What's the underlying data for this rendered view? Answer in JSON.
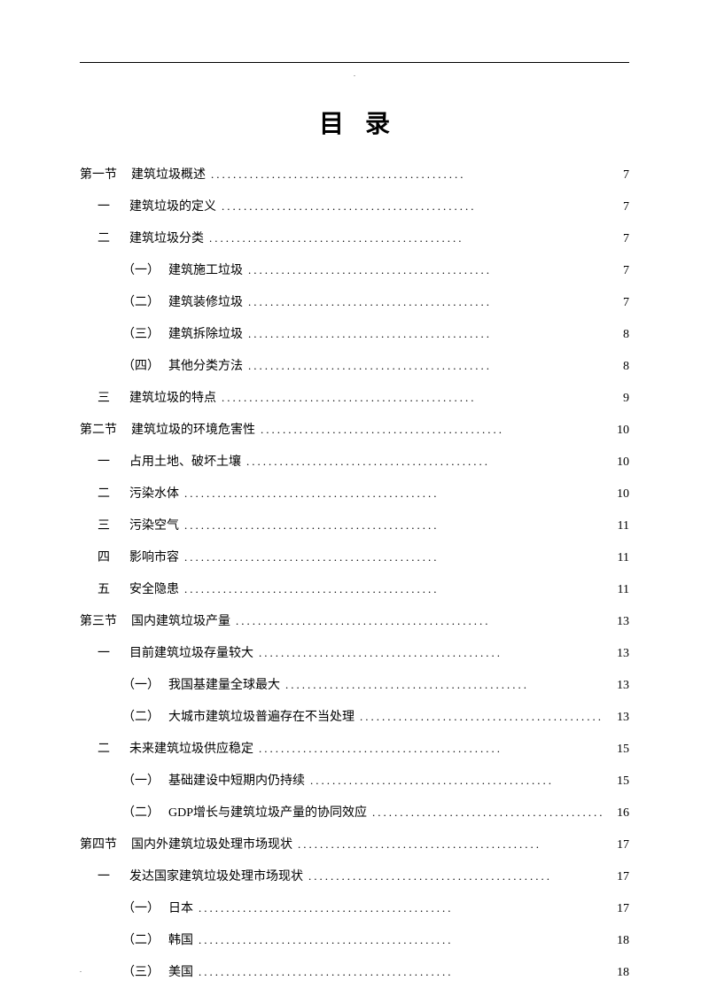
{
  "page_mark_top": ".",
  "page_mark_bottom": ".",
  "title": "目录",
  "dots_short": "............................................",
  "dots_med": "..............................................",
  "dots_long": "................................................",
  "entries": [
    {
      "indent": 0,
      "num": "第一节",
      "label": "建筑垃圾概述",
      "page": "7",
      "gap": false
    },
    {
      "indent": 1,
      "num": "一",
      "label": "建筑垃圾的定义",
      "page": "7",
      "gap": false
    },
    {
      "indent": 1,
      "num": "二",
      "label": "建筑垃圾分类",
      "page": "7",
      "gap": false
    },
    {
      "indent": 2,
      "num": "（一）",
      "label": "建筑施工垃圾",
      "page": "7",
      "gap": false
    },
    {
      "indent": 2,
      "num": "（二）",
      "label": "建筑装修垃圾",
      "page": "7",
      "gap": false
    },
    {
      "indent": 2,
      "num": "（三）",
      "label": "建筑拆除垃圾",
      "page": "8",
      "gap": false
    },
    {
      "indent": 2,
      "num": "（四）",
      "label": "其他分类方法",
      "page": "8",
      "gap": false
    },
    {
      "indent": 1,
      "num": "三",
      "label": "建筑垃圾的特点",
      "page": "9",
      "gap": false
    },
    {
      "indent": 0,
      "num": "第二节",
      "label": "建筑垃圾的环境危害性",
      "page": "10",
      "gap": true
    },
    {
      "indent": 1,
      "num": "一",
      "label": "占用土地、破坏土壤",
      "page": "10",
      "gap": false
    },
    {
      "indent": 1,
      "num": "二",
      "label": "污染水体",
      "page": "10",
      "gap": false
    },
    {
      "indent": 1,
      "num": "三",
      "label": "污染空气",
      "page": "11",
      "gap": false
    },
    {
      "indent": 1,
      "num": "四",
      "label": "影响市容",
      "page": "11",
      "gap": false
    },
    {
      "indent": 1,
      "num": "五",
      "label": "安全隐患",
      "page": "11",
      "gap": false
    },
    {
      "indent": 0,
      "num": "第三节",
      "label": "国内建筑垃圾产量",
      "page": "13",
      "gap": true
    },
    {
      "indent": 1,
      "num": "一",
      "label": "目前建筑垃圾存量较大",
      "page": "13",
      "gap": false
    },
    {
      "indent": 2,
      "num": "（一）",
      "label": "我国基建量全球最大",
      "page": "13",
      "gap": false
    },
    {
      "indent": 2,
      "num": "（二）",
      "label": "大城市建筑垃圾普遍存在不当处理",
      "page": "13",
      "gap": false
    },
    {
      "indent": 1,
      "num": "二",
      "label": "未来建筑垃圾供应稳定",
      "page": "15",
      "gap": false
    },
    {
      "indent": 2,
      "num": "（一）",
      "label": "基础建设中短期内仍持续",
      "page": "15",
      "gap": false
    },
    {
      "indent": 2,
      "num": "（二）",
      "label": "GDP增长与建筑垃圾产量的协同效应",
      "page": "16",
      "gap": false
    },
    {
      "indent": 0,
      "num": "第四节",
      "label": "国内外建筑垃圾处理市场现状",
      "page": "17",
      "gap": true
    },
    {
      "indent": 1,
      "num": "一",
      "label": "发达国家建筑垃圾处理市场现状",
      "page": "17",
      "gap": false
    },
    {
      "indent": 2,
      "num": "（一）",
      "label": "日本",
      "page": "17",
      "gap": false
    },
    {
      "indent": 2,
      "num": "（二）",
      "label": "韩国",
      "page": "18",
      "gap": false
    },
    {
      "indent": 2,
      "num": "（三）",
      "label": "美国",
      "page": "18",
      "gap": false
    }
  ]
}
